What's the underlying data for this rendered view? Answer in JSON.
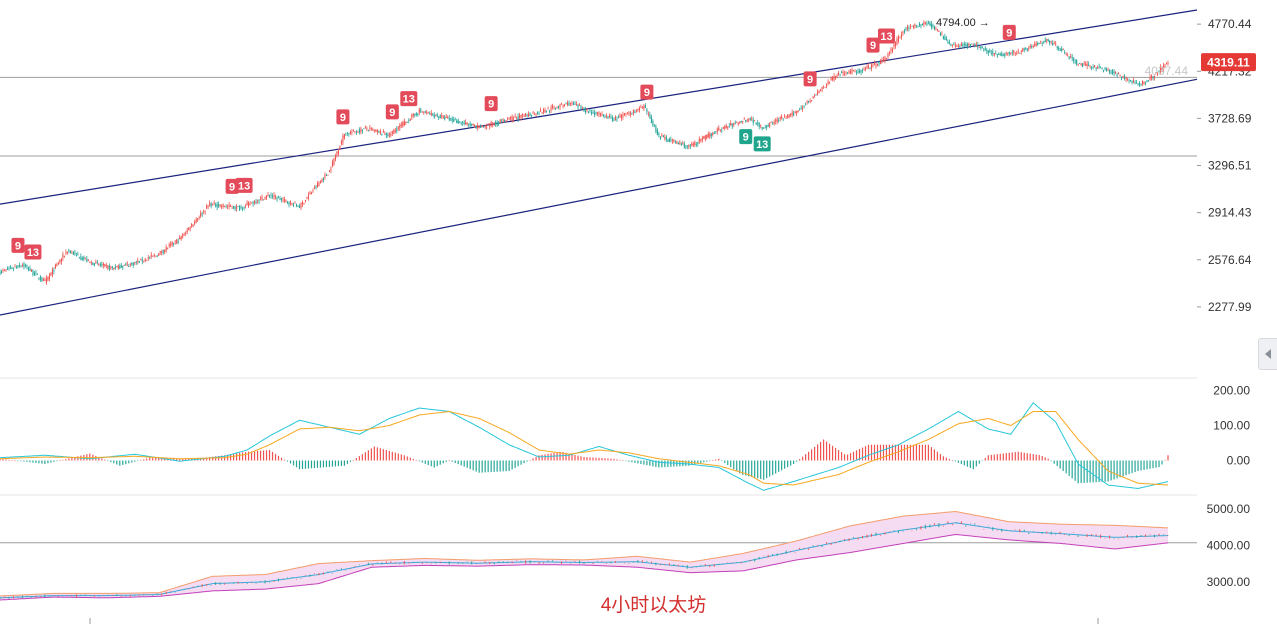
{
  "caption": "4小时以太坊",
  "colors": {
    "up": "#ef5350",
    "down": "#26a69a",
    "channel": "#1a237e",
    "hline": "#9e9e9e",
    "dif": "#26c6da",
    "dea": "#f6a821",
    "band_upper": "#f39c6b",
    "band_lower": "#c23fb8",
    "band_mid": "#3da9d8",
    "band_fill": "#f6dcf3",
    "badge_red": "#e34a5a",
    "badge_green": "#1fa58b",
    "last_price_bg": "#e53935"
  },
  "price_axis_ticks": [
    "4770.44",
    "4217.32",
    "3728.69",
    "3296.51",
    "2914.43",
    "2576.64",
    "2277.99"
  ],
  "last_price_label": "4319.11",
  "ghost_price_label": "4037.44",
  "peak_label": "4794.00",
  "macd_axis_ticks": [
    "200.00",
    "100.00",
    "0.00"
  ],
  "band_axis_ticks": [
    "5000.00",
    "4000.00",
    "3000.00"
  ],
  "chart_data": [
    {
      "type": "candlestick",
      "title": "",
      "ylim": [
        2100,
        4950
      ],
      "y_scale": "log",
      "horizontal_levels": [
        4150,
        3380
      ],
      "channel_lines": [
        {
          "name": "",
          "from": [
            0,
            2980
          ],
          "to": [
            1,
            4950
          ]
        },
        {
          "name": "",
          "from": [
            0,
            2230
          ],
          "to": [
            1,
            4130
          ]
        }
      ],
      "close_anchor_index": [
        0,
        15,
        30,
        45,
        60,
        75,
        90,
        105,
        120,
        140,
        160,
        180,
        200,
        220,
        230,
        245,
        260,
        280,
        300,
        320,
        340,
        360,
        380,
        395,
        410,
        430,
        440,
        460,
        480,
        500,
        510,
        520,
        530,
        545,
        560,
        575,
        590,
        605,
        620,
        635,
        650,
        665,
        680,
        700,
        720,
        740,
        760,
        770,
        780
      ],
      "close_anchor_value": [
        2495,
        2545,
        2430,
        2640,
        2560,
        2520,
        2555,
        2610,
        2720,
        2980,
        2950,
        3050,
        2960,
        3250,
        3580,
        3630,
        3570,
        3800,
        3720,
        3640,
        3720,
        3790,
        3880,
        3790,
        3720,
        3840,
        3560,
        3460,
        3620,
        3730,
        3640,
        3720,
        3770,
        3970,
        4200,
        4220,
        4330,
        4720,
        4790,
        4520,
        4520,
        4400,
        4440,
        4580,
        4300,
        4230,
        4070,
        4160,
        4319.11
      ],
      "markers": [
        {
          "label": "9",
          "index": 12,
          "kind": "sell"
        },
        {
          "label": "13",
          "index": 22,
          "kind": "sell"
        },
        {
          "label": "9",
          "index": 155,
          "kind": "sell"
        },
        {
          "label": "13",
          "index": 163,
          "kind": "sell"
        },
        {
          "label": "9",
          "index": 229,
          "kind": "sell"
        },
        {
          "label": "9",
          "index": 262,
          "kind": "sell"
        },
        {
          "label": "13",
          "index": 273,
          "kind": "sell"
        },
        {
          "label": "9",
          "index": 328,
          "kind": "sell"
        },
        {
          "label": "9",
          "index": 432,
          "kind": "sell"
        },
        {
          "label": "9",
          "index": 498,
          "kind": "buy"
        },
        {
          "label": "13",
          "index": 509,
          "kind": "buy"
        },
        {
          "label": "9",
          "index": 541,
          "kind": "sell"
        },
        {
          "label": "9",
          "index": 583,
          "kind": "sell"
        },
        {
          "label": "13",
          "index": 592,
          "kind": "sell"
        },
        {
          "label": "9",
          "index": 674,
          "kind": "sell"
        }
      ]
    },
    {
      "type": "macd",
      "ylim": [
        -90,
        230
      ],
      "y_ticks": [
        200,
        100,
        0
      ],
      "anchor_index": [
        0,
        30,
        60,
        90,
        120,
        150,
        165,
        180,
        200,
        220,
        240,
        260,
        280,
        300,
        320,
        340,
        360,
        380,
        400,
        420,
        440,
        460,
        480,
        500,
        510,
        530,
        560,
        580,
        600,
        620,
        640,
        660,
        675,
        690,
        705,
        720,
        740,
        760,
        780
      ],
      "dif_anchor": [
        8,
        15,
        5,
        18,
        -2,
        12,
        30,
        70,
        115,
        95,
        75,
        120,
        150,
        140,
        95,
        45,
        10,
        15,
        40,
        15,
        -5,
        -10,
        -20,
        -65,
        -85,
        -60,
        -20,
        15,
        45,
        90,
        140,
        90,
        75,
        165,
        110,
        -10,
        -70,
        -80,
        -60
      ],
      "dea_anchor": [
        5,
        10,
        8,
        12,
        5,
        8,
        18,
        45,
        90,
        95,
        85,
        100,
        130,
        140,
        120,
        80,
        30,
        18,
        30,
        22,
        5,
        -5,
        -15,
        -40,
        -65,
        -70,
        -40,
        -5,
        25,
        60,
        105,
        120,
        100,
        140,
        140,
        60,
        -30,
        -65,
        -70
      ],
      "hist_anchor_index": [
        0,
        30,
        60,
        80,
        100,
        130,
        150,
        165,
        180,
        200,
        215,
        230,
        250,
        270,
        290,
        300,
        320,
        340,
        360,
        375,
        390,
        410,
        440,
        460,
        480,
        495,
        510,
        530,
        550,
        565,
        580,
        600,
        620,
        630,
        650,
        660,
        680,
        695,
        700,
        720,
        740,
        760,
        775,
        780
      ],
      "hist_anchor": [
        5,
        -10,
        20,
        -15,
        8,
        5,
        15,
        25,
        30,
        -25,
        -20,
        -15,
        40,
        15,
        -20,
        0,
        -35,
        -30,
        15,
        25,
        10,
        5,
        -20,
        -15,
        5,
        -40,
        -55,
        -10,
        60,
        15,
        45,
        45,
        45,
        12,
        -25,
        15,
        25,
        15,
        5,
        -65,
        -60,
        -30,
        -18,
        15
      ]
    },
    {
      "type": "band",
      "ylim": [
        2500,
        5300
      ],
      "y_ticks": [
        5000,
        4000,
        3000
      ],
      "horizontal_level": 4070,
      "upper_anchor": [
        2610,
        2680,
        2680,
        2700,
        3150,
        3200,
        3500,
        3580,
        3640,
        3590,
        3630,
        3600,
        3700,
        3540,
        3780,
        4120,
        4530,
        4800,
        4930,
        4650,
        4580,
        4550,
        4480
      ],
      "lower_anchor": [
        2500,
        2580,
        2560,
        2600,
        2750,
        2800,
        2950,
        3400,
        3450,
        3430,
        3470,
        3460,
        3400,
        3250,
        3300,
        3600,
        3800,
        4050,
        4300,
        4150,
        4050,
        3900,
        4070
      ],
      "mid_anchor": [
        2560,
        2620,
        2620,
        2650,
        2950,
        3000,
        3200,
        3490,
        3540,
        3510,
        3550,
        3530,
        3550,
        3400,
        3540,
        3860,
        4160,
        4420,
        4620,
        4400,
        4320,
        4220,
        4270
      ]
    }
  ]
}
